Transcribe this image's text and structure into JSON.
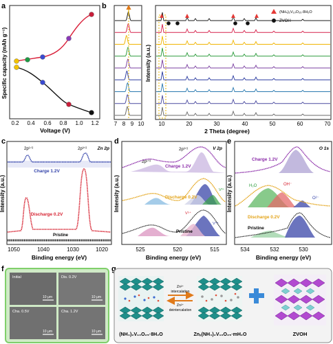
{
  "panels": {
    "a": {
      "label": "a",
      "xlabel": "Voltage (V)",
      "ylabel": "Specific capacity (mAh g⁻¹)",
      "xticks": [
        "0.2",
        "0.4",
        "0.6",
        "0.8",
        "1.0",
        "1.2"
      ],
      "yticks": [],
      "colors": {
        "charge": "#d9203a",
        "discharge": "#111111"
      }
    },
    "b": {
      "label": "b",
      "xlabel": "2 Theta (degree)",
      "ylabel": "Intensity (a.u.)",
      "inset_xticks": [
        "7",
        "8",
        "9",
        "10"
      ],
      "main_xticks": [
        "10",
        "20",
        "30",
        "40",
        "50",
        "60",
        "70"
      ],
      "legend": [
        {
          "marker": "triangle",
          "label": "(NH₄)₂V₁₀O₂₅·8H₂O",
          "color": "#e53935"
        },
        {
          "marker": "circle",
          "label": "ZVOH",
          "color": "#111111"
        }
      ],
      "trace_colors": [
        "#1a1a1a",
        "#d6204a",
        "#f0b400",
        "#2a9a3a",
        "#7a3fa0",
        "#2a3aa0",
        "#2a7ab0",
        "#4a4aa0",
        "#6a6a6a"
      ]
    },
    "c": {
      "label": "c",
      "xlabel": "Binding energy (eV)",
      "ylabel": "Intensity (a.u.)",
      "xticks": [
        "1050",
        "1040",
        "1030",
        "1020"
      ],
      "core_level": "Zn 2p",
      "peak_labels": [
        "2p¹ᐟ²",
        "2p³ᐟ²"
      ],
      "traces": [
        {
          "name": "Charge 1.2V",
          "color": "#2f3fa8"
        },
        {
          "name": "Discharge 0.2V",
          "color": "#d6202f"
        },
        {
          "name": "Pristine",
          "color": "#222222"
        }
      ]
    },
    "d": {
      "label": "d",
      "xlabel": "Binding energy (eV)",
      "ylabel": "Intensity (a.u.)",
      "xticks": [
        "525",
        "520",
        "515"
      ],
      "core_level": "V 2p",
      "peak_labels": [
        "2p¹ᐟ²",
        "2p³ᐟ²"
      ],
      "species": [
        "V⁵⁺",
        "V⁴⁺",
        "V³⁺"
      ],
      "traces": [
        {
          "name": "Charge 1.2V",
          "color": "#8a2aa8"
        },
        {
          "name": "Discharge 0.2V",
          "color": "#e3a317"
        },
        {
          "name": "Pristine",
          "color": "#222222"
        }
      ]
    },
    "e": {
      "label": "e",
      "xlabel": "Binding energy (eV)",
      "ylabel": "Intensity (a.u.)",
      "xticks": [
        "534",
        "532",
        "530"
      ],
      "core_level": "O 1s",
      "species": [
        "H₂O",
        "OH⁻",
        "O²⁻"
      ],
      "traces": [
        {
          "name": "Charge 1.2V",
          "color": "#8a2aa8"
        },
        {
          "name": "Discharge 0.2V",
          "color": "#e3a317"
        },
        {
          "name": "Pristine",
          "color": "#222222"
        }
      ]
    },
    "f": {
      "label": "f",
      "images": [
        {
          "caption": "Initial",
          "scale": "10 μm"
        },
        {
          "caption": "Dis. 0.2V",
          "scale": "10 μm"
        },
        {
          "caption": "Cha. 0.5V",
          "scale": "10 μm"
        },
        {
          "caption": "Cha. 1.2V",
          "scale": "10 μm"
        }
      ],
      "frame_color": "#7fcf6a"
    },
    "g": {
      "label": "g",
      "left_caption": "(NH₄)₂V₁₀O₂₅·8H₂O",
      "middle_caption": "Znₓ(NH₄)₂V₁₀O₂₅·mH₂O",
      "right_caption": "ZVOH",
      "arrow_top": [
        "Zn²⁺",
        "intercalation"
      ],
      "arrow_bottom": [
        "Zn²⁺",
        "deintercalation"
      ],
      "plus": "+"
    }
  }
}
